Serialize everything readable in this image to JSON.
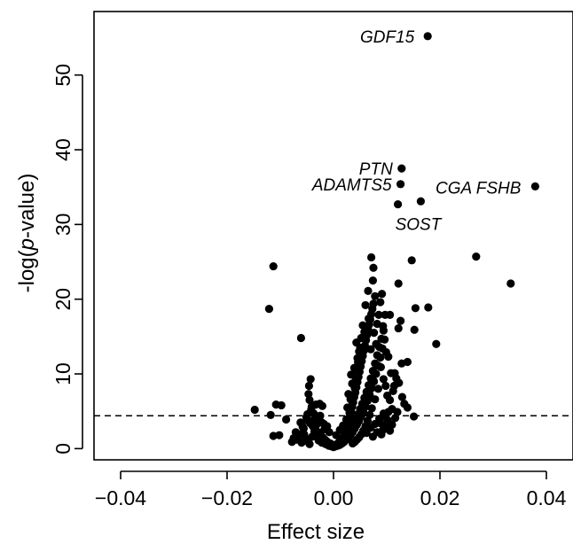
{
  "chart_data": {
    "type": "scatter",
    "title": "",
    "xlabel": "Effect size",
    "ylabel_parts": [
      "-log(",
      "p",
      "-value)"
    ],
    "xlim": [
      -0.045,
      0.045
    ],
    "ylim": [
      -1.5,
      58.5
    ],
    "xticks": [
      -0.04,
      -0.02,
      0.0,
      0.02,
      0.04
    ],
    "xtick_labels": [
      "−0.04",
      "−0.02",
      "0.00",
      "0.02",
      "0.04"
    ],
    "yticks": [
      0,
      10,
      20,
      30,
      40,
      50
    ],
    "ytick_labels": [
      "0",
      "10",
      "20",
      "30",
      "40",
      "50"
    ],
    "threshold": 4.4,
    "threshold_style": "dashed",
    "grid": false,
    "marker_color": "#000000",
    "labeled_points": [
      {
        "label": "GDF15",
        "x": 0.0177,
        "y": 55.2
      },
      {
        "label": "PTN",
        "x": 0.0128,
        "y": 37.5
      },
      {
        "label": "ADAMTS5",
        "x": 0.0126,
        "y": 35.4
      },
      {
        "label": "CGA FSHB",
        "x": 0.0379,
        "y": 35.1
      },
      {
        "label": "SOST",
        "x": 0.0121,
        "y": 32.7
      }
    ],
    "points": [
      [
        0.0177,
        55.2
      ],
      [
        0.0128,
        37.5
      ],
      [
        0.0126,
        35.4
      ],
      [
        0.0379,
        35.1
      ],
      [
        0.0121,
        32.7
      ],
      [
        0.0164,
        33.1
      ],
      [
        0.0268,
        25.7
      ],
      [
        0.0333,
        22.1
      ],
      [
        0.0147,
        25.2
      ],
      [
        0.0178,
        18.9
      ],
      [
        0.0193,
        14.0
      ],
      [
        -0.0113,
        24.4
      ],
      [
        -0.0121,
        18.7
      ],
      [
        -0.0061,
        14.8
      ],
      [
        0.0071,
        25.6
      ],
      [
        0.0075,
        24.2
      ],
      [
        0.0091,
        20.7
      ],
      [
        0.0078,
        20.4
      ],
      [
        0.0074,
        22.5
      ],
      [
        0.0122,
        22.1
      ],
      [
        0.0126,
        17.1
      ],
      [
        0.0122,
        16.1
      ],
      [
        0.0152,
        15.9
      ],
      [
        0.0154,
        18.8
      ],
      [
        0.0097,
        17.9
      ],
      [
        0.0106,
        17.9
      ],
      [
        0.0093,
        16.4
      ],
      [
        0.0099,
        12.9
      ],
      [
        0.0103,
        12.3
      ],
      [
        0.0108,
        10.1
      ],
      [
        0.0115,
        10.1
      ],
      [
        0.0128,
        11.4
      ],
      [
        0.0139,
        11.6
      ],
      [
        0.0114,
        8.4
      ],
      [
        0.0123,
        8.8
      ],
      [
        0.0129,
        6.9
      ],
      [
        0.0133,
        6.0
      ],
      [
        0.0151,
        4.3
      ],
      [
        0.0139,
        5.5
      ],
      [
        0.0098,
        4.2
      ],
      [
        0.0103,
        4.9
      ],
      [
        0.011,
        5.3
      ],
      [
        0.0096,
        3.1
      ],
      [
        0.0093,
        2.5
      ],
      [
        0.0088,
        3.4
      ],
      [
        -0.0148,
        5.2
      ],
      [
        -0.0108,
        5.9
      ],
      [
        -0.0098,
        5.8
      ],
      [
        -0.0118,
        4.5
      ],
      [
        -0.0102,
        1.8
      ],
      [
        -0.0113,
        1.7
      ],
      [
        -0.0089,
        3.9
      ],
      [
        -0.0043,
        9.3
      ],
      [
        -0.0046,
        8.4
      ],
      [
        -0.0033,
        5.9
      ],
      [
        -0.0042,
        5.2
      ],
      [
        -0.0049,
        4.6
      ],
      [
        -0.0051,
        4.2
      ],
      [
        -0.0038,
        3.8
      ],
      [
        -0.0026,
        6.0
      ],
      [
        -0.0025,
        4.4
      ],
      [
        -0.0021,
        5.7
      ],
      [
        -0.0018,
        3.3
      ],
      [
        -0.0062,
        3.5
      ],
      [
        -0.0058,
        2.9
      ],
      [
        -0.0071,
        2.2
      ],
      [
        -0.0067,
        1.5
      ],
      [
        -0.0075,
        1.4
      ],
      [
        -0.0055,
        1.9
      ],
      [
        -0.0052,
        1.3
      ],
      [
        -0.0047,
        0.9
      ],
      [
        -0.004,
        1.6
      ],
      [
        -0.0036,
        2.3
      ],
      [
        -0.0031,
        1.7
      ],
      [
        -0.0028,
        1.1
      ],
      [
        -0.0022,
        0.8
      ],
      [
        -0.0019,
        1.3
      ],
      [
        -0.0015,
        0.6
      ],
      [
        -0.0012,
        0.9
      ],
      [
        -0.0009,
        0.4
      ],
      [
        -0.0006,
        0.7
      ],
      [
        -0.0004,
        0.3
      ],
      [
        -0.0002,
        0.5
      ],
      [
        0.0,
        0.2
      ],
      [
        0.0002,
        0.4
      ],
      [
        0.0004,
        0.3
      ],
      [
        0.0006,
        0.6
      ],
      [
        0.0008,
        0.4
      ],
      [
        0.001,
        0.8
      ],
      [
        0.0012,
        0.5
      ],
      [
        0.0014,
        1.0
      ],
      [
        0.0016,
        0.7
      ],
      [
        0.0018,
        1.3
      ],
      [
        0.002,
        0.9
      ],
      [
        0.0022,
        1.6
      ],
      [
        0.0024,
        1.2
      ],
      [
        0.0026,
        2.0
      ],
      [
        0.0028,
        1.5
      ],
      [
        0.003,
        2.4
      ],
      [
        0.0032,
        1.8
      ],
      [
        0.0034,
        2.9
      ],
      [
        0.0036,
        2.2
      ],
      [
        0.0038,
        3.4
      ],
      [
        0.004,
        2.7
      ],
      [
        0.0042,
        4.0
      ],
      [
        0.0044,
        3.2
      ],
      [
        0.0046,
        4.6
      ],
      [
        0.0048,
        3.7
      ],
      [
        0.005,
        5.3
      ],
      [
        0.0052,
        4.3
      ],
      [
        0.0054,
        6.0
      ],
      [
        0.0056,
        4.9
      ],
      [
        0.0058,
        6.8
      ],
      [
        0.006,
        5.6
      ],
      [
        0.0062,
        7.6
      ],
      [
        0.0064,
        6.4
      ],
      [
        0.0066,
        8.5
      ],
      [
        0.0068,
        7.2
      ],
      [
        0.007,
        9.4
      ],
      [
        0.0072,
        8.1
      ],
      [
        0.0074,
        10.4
      ],
      [
        0.0076,
        9.0
      ],
      [
        0.0078,
        11.4
      ],
      [
        0.008,
        10.0
      ],
      [
        0.0082,
        12.5
      ],
      [
        0.0084,
        11.1
      ],
      [
        0.0086,
        13.6
      ],
      [
        0.0088,
        12.2
      ],
      [
        0.009,
        14.7
      ],
      [
        0.0092,
        13.4
      ],
      [
        0.0094,
        15.8
      ],
      [
        0.0096,
        14.6
      ],
      [
        0.0031,
        4.4
      ],
      [
        0.0033,
        5.0
      ],
      [
        0.0035,
        5.6
      ],
      [
        0.0037,
        6.2
      ],
      [
        0.0039,
        6.9
      ],
      [
        0.0041,
        7.5
      ],
      [
        0.0043,
        8.2
      ],
      [
        0.0045,
        8.9
      ],
      [
        0.0047,
        9.6
      ],
      [
        0.0049,
        10.3
      ],
      [
        0.0051,
        11.0
      ],
      [
        0.0053,
        11.7
      ],
      [
        0.0055,
        12.4
      ],
      [
        0.0057,
        13.1
      ],
      [
        0.0059,
        13.8
      ],
      [
        0.0061,
        14.5
      ],
      [
        0.0063,
        15.2
      ],
      [
        0.0065,
        15.9
      ],
      [
        0.0067,
        16.6
      ],
      [
        0.0069,
        17.3
      ],
      [
        0.0071,
        18.0
      ],
      [
        0.0073,
        18.7
      ],
      [
        0.0075,
        19.4
      ],
      [
        0.006,
        19.2
      ],
      [
        0.0065,
        21.1
      ],
      [
        0.0055,
        16.5
      ],
      [
        0.0052,
        14.8
      ],
      [
        0.0048,
        13.0
      ],
      [
        0.0046,
        11.6
      ],
      [
        0.0044,
        10.4
      ],
      [
        0.0042,
        9.2
      ],
      [
        0.004,
        8.1
      ],
      [
        0.0038,
        7.2
      ],
      [
        0.0036,
        6.4
      ],
      [
        0.0034,
        5.7
      ],
      [
        0.0029,
        3.6
      ],
      [
        0.0027,
        3.0
      ],
      [
        0.0025,
        2.6
      ],
      [
        0.0023,
        2.2
      ],
      [
        0.0021,
        1.9
      ],
      [
        0.0019,
        1.6
      ],
      [
        0.0017,
        1.4
      ],
      [
        0.0015,
        1.2
      ],
      [
        0.0013,
        1.0
      ],
      [
        0.0011,
        0.9
      ],
      [
        0.0009,
        0.7
      ],
      [
        0.0007,
        0.6
      ],
      [
        0.0005,
        0.5
      ],
      [
        0.0003,
        0.4
      ],
      [
        0.0001,
        0.3
      ],
      [
        -0.0001,
        0.3
      ],
      [
        -0.0003,
        0.4
      ],
      [
        -0.0005,
        0.5
      ],
      [
        -0.0007,
        0.6
      ],
      [
        -0.001,
        0.8
      ],
      [
        -0.0013,
        1.0
      ],
      [
        -0.0016,
        1.2
      ],
      [
        -0.002,
        1.5
      ],
      [
        -0.0024,
        1.8
      ],
      [
        -0.0029,
        2.2
      ],
      [
        -0.0034,
        2.6
      ],
      [
        -0.0039,
        3.0
      ],
      [
        -0.0044,
        3.4
      ],
      [
        -0.005,
        3.8
      ],
      [
        -0.0056,
        2.7
      ],
      [
        -0.0063,
        1.9
      ],
      [
        -0.0069,
        1.2
      ],
      [
        -0.0078,
        0.9
      ],
      [
        -0.006,
        0.8
      ],
      [
        -0.0045,
        0.6
      ],
      [
        0.0005,
        1.8
      ],
      [
        0.0012,
        2.5
      ],
      [
        0.0018,
        3.1
      ],
      [
        0.0024,
        3.9
      ],
      [
        0.003,
        4.8
      ],
      [
        0.0026,
        5.5
      ],
      [
        0.0032,
        6.6
      ],
      [
        0.0028,
        7.3
      ],
      [
        0.0035,
        8.7
      ],
      [
        0.0033,
        9.9
      ],
      [
        0.0039,
        10.8
      ],
      [
        0.0045,
        12.1
      ],
      [
        0.005,
        13.5
      ],
      [
        0.0043,
        14.2
      ],
      [
        0.0058,
        15.6
      ],
      [
        0.0066,
        17.4
      ],
      [
        0.007,
        13.3
      ],
      [
        0.0076,
        15.5
      ],
      [
        0.0082,
        16.7
      ],
      [
        0.0085,
        17.9
      ],
      [
        0.0088,
        19.6
      ],
      [
        0.008,
        14.0
      ],
      [
        0.0089,
        10.9
      ],
      [
        0.0094,
        9.3
      ],
      [
        0.0098,
        8.4
      ],
      [
        0.0101,
        7.1
      ],
      [
        0.0106,
        6.5
      ],
      [
        0.0112,
        7.7
      ],
      [
        0.0118,
        9.4
      ],
      [
        0.0084,
        8.0
      ],
      [
        0.0078,
        6.6
      ],
      [
        0.0072,
        5.4
      ],
      [
        0.0068,
        4.5
      ],
      [
        0.0064,
        3.7
      ],
      [
        0.006,
        3.0
      ],
      [
        0.0056,
        2.4
      ],
      [
        0.0052,
        1.9
      ],
      [
        0.0048,
        1.5
      ],
      [
        0.0044,
        1.2
      ],
      [
        0.004,
        0.9
      ],
      [
        0.0036,
        0.7
      ],
      [
        0.0062,
        2.1
      ],
      [
        0.007,
        2.8
      ],
      [
        0.0078,
        3.3
      ],
      [
        0.0086,
        4.0
      ],
      [
        0.0094,
        4.7
      ],
      [
        0.0102,
        3.8
      ],
      [
        0.011,
        3.2
      ],
      [
        0.0116,
        4.1
      ],
      [
        0.012,
        4.9
      ],
      [
        0.0074,
        1.6
      ],
      [
        0.0082,
        2.2
      ],
      [
        0.009,
        1.9
      ],
      [
        0.0098,
        2.8
      ],
      [
        0.0106,
        2.4
      ],
      [
        -0.0008,
        2.2
      ],
      [
        -0.0012,
        3.0
      ],
      [
        -0.0017,
        2.6
      ],
      [
        -0.0022,
        3.5
      ],
      [
        -0.0027,
        4.1
      ],
      [
        -0.0032,
        3.2
      ],
      [
        -0.0037,
        4.7
      ],
      [
        -0.0041,
        5.6
      ],
      [
        -0.0045,
        6.5
      ],
      [
        -0.0047,
        7.3
      ]
    ]
  }
}
